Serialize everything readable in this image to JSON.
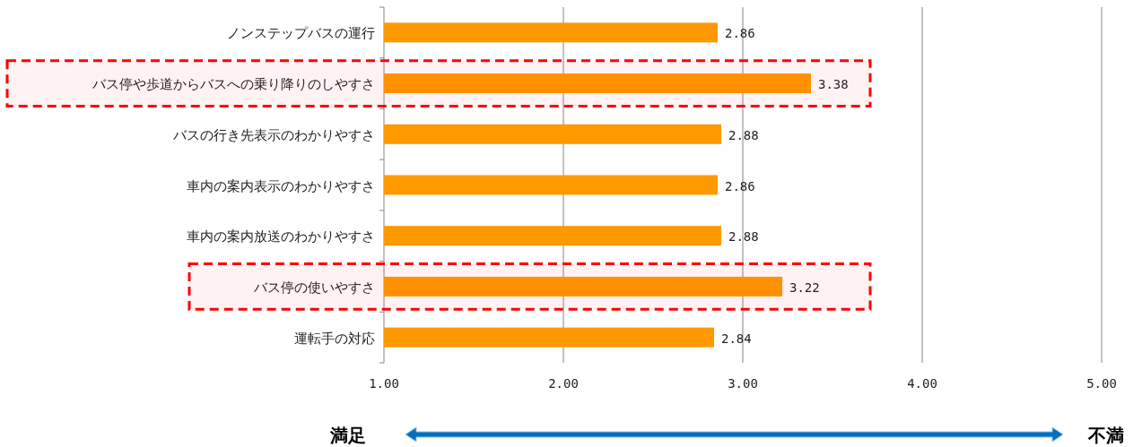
{
  "chart_data": {
    "type": "bar",
    "orientation": "horizontal",
    "categories": [
      "ノンステップバスの運行",
      "バス停や歩道からバスへの乗り降りのしやすさ",
      "バスの行き先表示のわかりやすさ",
      "車内の案内表示のわかりやすさ",
      "車内の案内放送のわかりやすさ",
      "バス停の使いやすさ",
      "運転手の対応"
    ],
    "values": [
      2.86,
      3.38,
      2.88,
      2.86,
      2.88,
      3.22,
      2.84
    ],
    "color": "#ff9900",
    "data_labels": true,
    "xlim": [
      1,
      5
    ],
    "xticks": [
      {
        "value": 1,
        "label": "1.00"
      },
      {
        "value": 2,
        "label": "2.00"
      },
      {
        "value": 3,
        "label": "3.00"
      },
      {
        "value": 4,
        "label": "4.00"
      },
      {
        "value": 5,
        "label": "5.00"
      }
    ],
    "grid": "x",
    "bands": [
      {
        "axis": "y",
        "from": "バス停や歩道からバスへの乗り降りのしやすさ",
        "to": "バス停や歩道からバスへの乗り降りのしやすさ",
        "color": "#ff0000"
      },
      {
        "axis": "y",
        "from": "バス停の使いやすさ",
        "to": "バス停の使いやすさ",
        "color": "#ff0000"
      }
    ],
    "annotations": [
      "満足",
      "不満"
    ]
  }
}
